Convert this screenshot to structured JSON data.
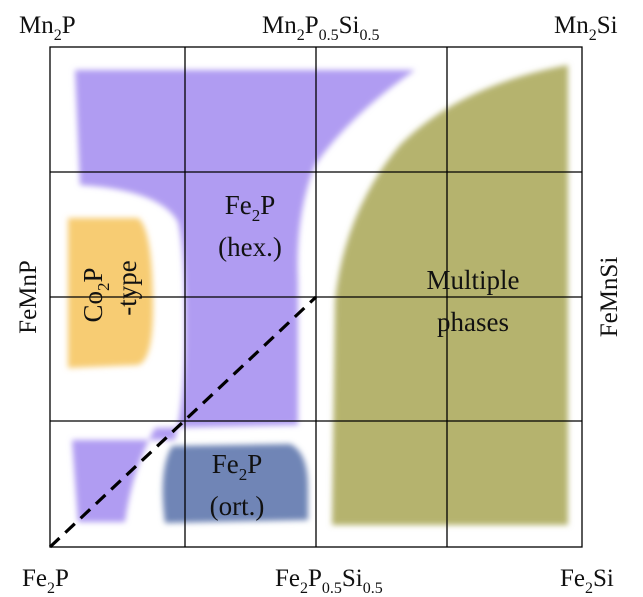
{
  "corners": {
    "top_left": {
      "base": "Mn",
      "sub1": "2",
      "mid": "P",
      "sub2": "",
      "tail": "",
      "sub3": ""
    },
    "top_mid": {
      "base": "Mn",
      "sub1": "2",
      "mid": "P",
      "sub2": "0.5",
      "tail": "Si",
      "sub3": "0.5"
    },
    "top_right": {
      "base": "Mn",
      "sub1": "2",
      "mid": "Si",
      "sub2": "",
      "tail": "",
      "sub3": ""
    },
    "bottom_left": {
      "base": "Fe",
      "sub1": "2",
      "mid": "P",
      "sub2": "",
      "tail": "",
      "sub3": ""
    },
    "bottom_mid": {
      "base": "Fe",
      "sub1": "2",
      "mid": "P",
      "sub2": "0.5",
      "tail": "Si",
      "sub3": "0.5"
    },
    "bottom_right": {
      "base": "Fe",
      "sub1": "2",
      "mid": "Si",
      "sub2": "",
      "tail": "",
      "sub3": ""
    }
  },
  "sides": {
    "left": "FeMnP",
    "right": "FeMnSi"
  },
  "regions": {
    "hex": {
      "line1_base": "Fe",
      "line1_sub": "2",
      "line1_tail": "P",
      "line2": "(hex.)",
      "color": "#b09cf2"
    },
    "ort": {
      "line1_base": "Fe",
      "line1_sub": "2",
      "line1_tail": "P",
      "line2": "(ort.)",
      "color": "#6f85b6"
    },
    "co2p": {
      "line1_base": "Co",
      "line1_sub": "2",
      "line1_tail": "P",
      "line2": "-type",
      "color": "#f7cc73"
    },
    "multiple": {
      "line1": "Multiple",
      "line2": "phases",
      "color": "#b5b36e"
    }
  }
}
